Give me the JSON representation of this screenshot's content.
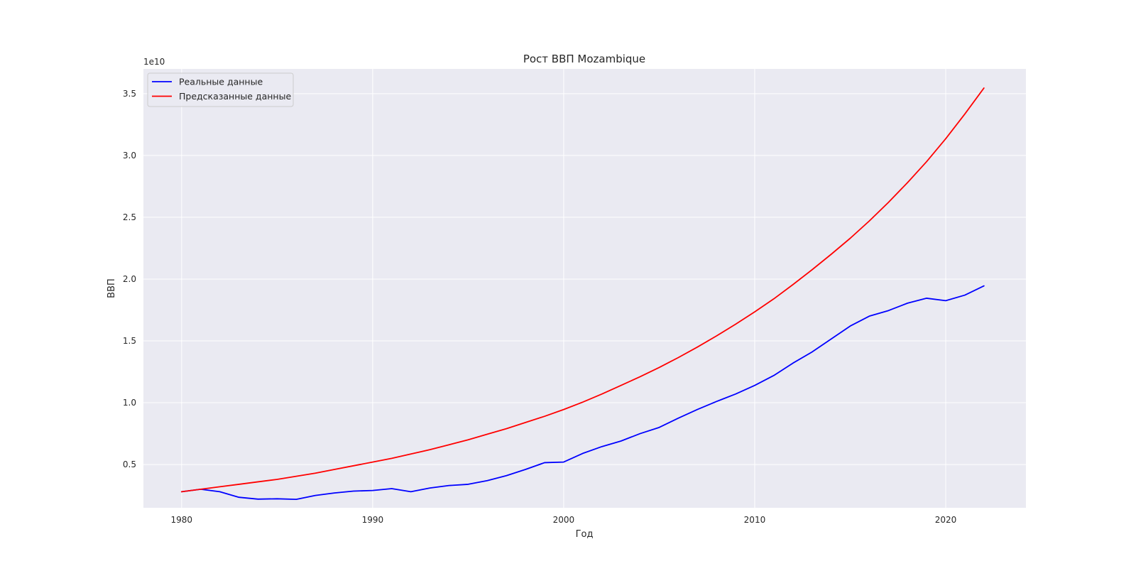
{
  "chart_data": {
    "type": "line",
    "title": "Рост ВВП Mozambique",
    "xlabel": "Год",
    "ylabel": "ВВП",
    "y_offset_label": "1e10",
    "xlim": [
      1978,
      2024.2
    ],
    "ylim": [
      0.15,
      3.7
    ],
    "x_ticks": [
      1980,
      1990,
      2000,
      2010,
      2020
    ],
    "x_tick_labels": [
      "1980",
      "1990",
      "2000",
      "2010",
      "2020"
    ],
    "y_ticks": [
      0.5,
      1.0,
      1.5,
      2.0,
      2.5,
      3.0,
      3.5
    ],
    "y_tick_labels": [
      "0.5",
      "1.0",
      "1.5",
      "2.0",
      "2.5",
      "3.0",
      "3.5"
    ],
    "grid": true,
    "legend_position": "top-left",
    "background_color": "#eaeaf2",
    "grid_color": "#ffffff",
    "x": [
      1980,
      1981,
      1982,
      1983,
      1984,
      1985,
      1986,
      1987,
      1988,
      1989,
      1990,
      1991,
      1992,
      1993,
      1994,
      1995,
      1996,
      1997,
      1998,
      1999,
      2000,
      2001,
      2002,
      2003,
      2004,
      2005,
      2006,
      2007,
      2008,
      2009,
      2010,
      2011,
      2012,
      2013,
      2014,
      2015,
      2016,
      2017,
      2018,
      2019,
      2020,
      2021,
      2022
    ],
    "series": [
      {
        "name": "Реальные данные",
        "color": "#0000ff",
        "values": [
          0.28,
          0.3,
          0.28,
          0.235,
          0.22,
          0.223,
          0.218,
          0.25,
          0.27,
          0.285,
          0.29,
          0.305,
          0.28,
          0.31,
          0.33,
          0.34,
          0.37,
          0.41,
          0.46,
          0.515,
          0.52,
          0.59,
          0.645,
          0.69,
          0.75,
          0.8,
          0.875,
          0.945,
          1.01,
          1.07,
          1.14,
          1.22,
          1.32,
          1.41,
          1.515,
          1.62,
          1.7,
          1.745,
          1.805,
          1.845,
          1.825,
          1.87,
          1.945
        ]
      },
      {
        "name": "Предсказанные данные",
        "color": "#ff0000",
        "values": [
          0.28,
          0.3,
          0.32,
          0.34,
          0.36,
          0.38,
          0.405,
          0.43,
          0.46,
          0.49,
          0.52,
          0.55,
          0.585,
          0.62,
          0.66,
          0.7,
          0.745,
          0.79,
          0.84,
          0.89,
          0.945,
          1.005,
          1.07,
          1.14,
          1.21,
          1.285,
          1.365,
          1.45,
          1.54,
          1.635,
          1.735,
          1.84,
          1.955,
          2.075,
          2.2,
          2.33,
          2.47,
          2.62,
          2.78,
          2.95,
          3.135,
          3.335,
          3.545
        ]
      }
    ]
  }
}
